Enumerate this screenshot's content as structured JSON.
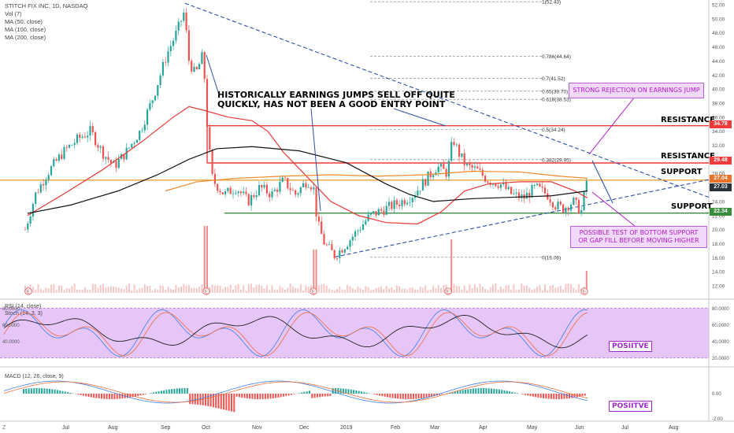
{
  "legend": {
    "title": "STITCH FIX INC, 1D, NASDAQ",
    "lines": [
      "Vol (7)",
      "MA (50, close)",
      "MA (100, close)",
      "MA (200, close)"
    ]
  },
  "annotations": {
    "earnings_note_1": "HISTORICALLY EARNINGS JUMPS SELL OFF QUITE",
    "earnings_note_2": "QUICKLY, HAS NOT BEEN A GOOD ENTRY POINT",
    "rejection": "STRONG REJECTION ON EARNINGS JUMP",
    "test_1": "POSSIBLE TEST OF BOTTOM SUPPORT",
    "test_2": "OR GAP FILL BEFORE MOVING HIGHER",
    "resistance_upper": "RESISTANCE",
    "resistance_lower": "RESISTANCE",
    "support_upper": "SUPPORT",
    "support_lower": "SUPPORT",
    "rsi_label": "POSIITVE",
    "macd_label": "POSIITVE"
  },
  "colors": {
    "up": "#26a69a",
    "down": "#ef5350",
    "ma50": "#e53935",
    "ma100": "#ef8a2c",
    "ma200": "#111111",
    "rsi_band": "#d9a7f5",
    "annotation_purple": "#b21cc8",
    "resistance": "#ef3b3b",
    "support_lower": "#388e3c",
    "support_upper": "#e8a33b",
    "trend": "#2e4fa6"
  },
  "chart_data": {
    "type": "candlestick",
    "title": "STITCH FIX INC, 1D, NASDAQ",
    "x_ticks": [
      "Jul",
      "Aug",
      "Sep",
      "Oct",
      "Nov",
      "Dec",
      "2019",
      "Feb",
      "Mar",
      "Apr",
      "May",
      "Jun",
      "Jul",
      "Aug"
    ],
    "y_range": [
      12.0,
      52.0
    ],
    "y_ticks": [
      12.0,
      14.0,
      16.0,
      18.0,
      20.0,
      22.0,
      24.0,
      26.0,
      28.0,
      30.0,
      32.0,
      34.0,
      36.0,
      38.0,
      40.0,
      42.0,
      44.0,
      46.0,
      48.0,
      50.0,
      52.0
    ],
    "price_tags": [
      {
        "value": "34.78",
        "color": "#ef3b3b"
      },
      {
        "value": "29.48",
        "color": "#ef3b3b"
      },
      {
        "value": "27.04",
        "color": "#e8742c"
      },
      {
        "value": "27.03",
        "color": "#263238"
      },
      {
        "value": "22.34",
        "color": "#388e3c"
      }
    ],
    "fibonacci": [
      {
        "label": "1(52.43)",
        "value": 52.43
      },
      {
        "label": "0.786(44.64)",
        "value": 44.64
      },
      {
        "label": "0.7(41.52)",
        "value": 41.52
      },
      {
        "label": "0.65(39.70)",
        "value": 39.7
      },
      {
        "label": "0.618(38.53)",
        "value": 38.53
      },
      {
        "label": "0.5(34.24)",
        "value": 34.24
      },
      {
        "label": "0.382(29.95)",
        "value": 29.95
      },
      {
        "label": "0(16.06)",
        "value": 16.06
      }
    ],
    "levels": {
      "resistance_upper": 34.78,
      "resistance_lower": 29.48,
      "support_upper": 27.04,
      "support_lower": 22.34
    },
    "earnings_marker": "E",
    "rsi": {
      "legend": "RSI (14, close)",
      "stoch_legend": "Stoch (14, 3, 3)",
      "range": [
        10,
        90
      ],
      "ticks": [
        "80.0000",
        "60.0000",
        "40.0000",
        "20.0000"
      ],
      "left_ticks": [
        "80.0000",
        "60.0000",
        "40.0000"
      ],
      "band": [
        20,
        80
      ]
    },
    "macd": {
      "legend": "MACD (12, 26, close, 9)",
      "ticks": [
        "0.00",
        "-2.00"
      ]
    },
    "bottom_left_glyph": "Z"
  }
}
